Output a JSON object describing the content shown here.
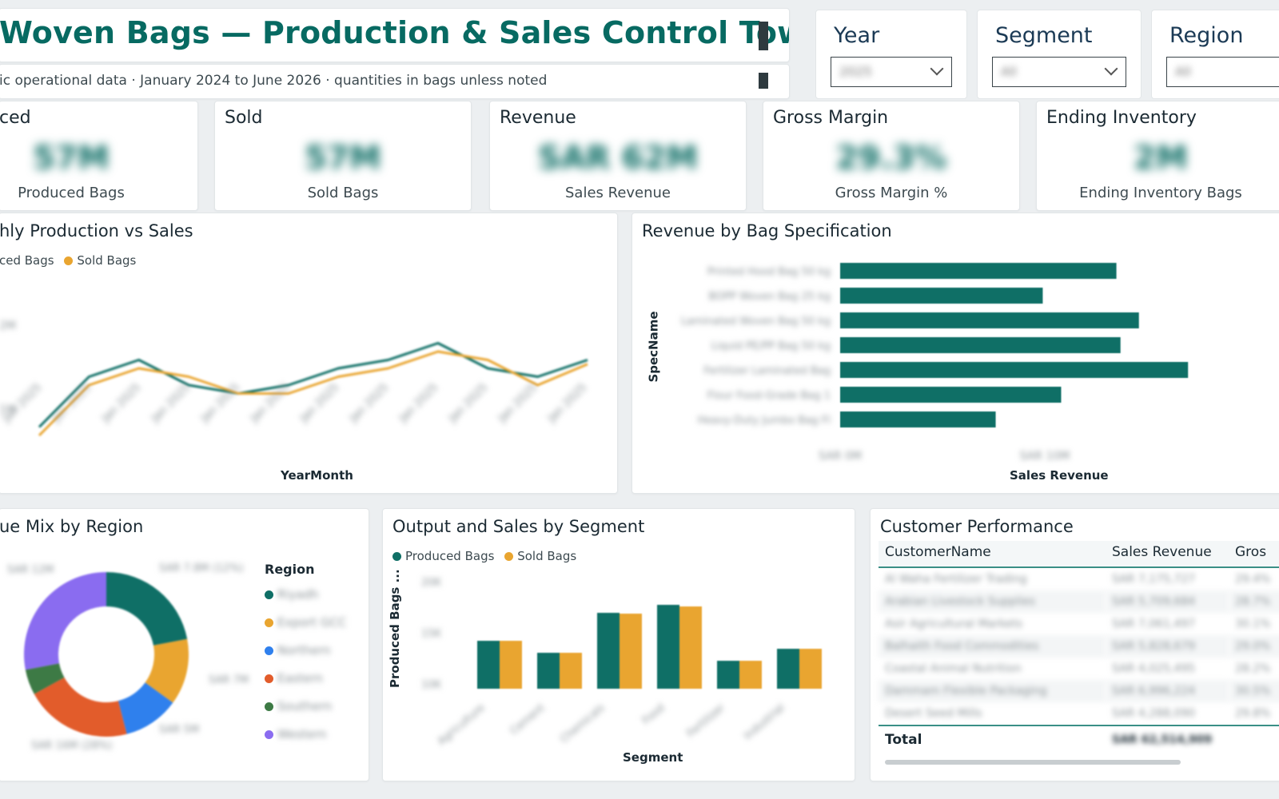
{
  "header": {
    "title": "Woven Bags — Production & Sales Control Tower",
    "subtitle": "ic operational data · January 2024 to June 2026 · quantities in bags unless noted"
  },
  "slicers": [
    {
      "label": "Year",
      "value": "2025"
    },
    {
      "label": "Segment",
      "value": "All"
    },
    {
      "label": "Region",
      "value": "All"
    }
  ],
  "kpis": [
    {
      "title": "ced",
      "value": "57M",
      "caption": "Produced Bags"
    },
    {
      "title": "Sold",
      "value": "57M",
      "caption": "Sold Bags"
    },
    {
      "title": "Revenue",
      "value": "SAR 62M",
      "caption": "Sales Revenue"
    },
    {
      "title": "Gross Margin",
      "value": "29.3%",
      "caption": "Gross Margin %"
    },
    {
      "title": "Ending Inventory",
      "value": "2M",
      "caption": "Ending Inventory Bags"
    }
  ],
  "line_panel": {
    "title": "hly Production vs Sales",
    "legend": [
      "ced Bags",
      "Sold Bags"
    ],
    "xlabel": "YearMonth",
    "colors": {
      "produced": "#0f6f66",
      "sold": "#e9a530"
    }
  },
  "bar_panel": {
    "title": "Revenue by Bag Specification",
    "ylabel": "SpecName",
    "xlabel": "Sales Revenue",
    "categories": [
      "Printed Hood Bag 50 kg",
      "BOPP Woven Bag 25 kg",
      "Laminated Woven Bag 50 kg",
      "Liquid PE/PP Bag 50 kg",
      "Fertilizer Laminated Bag",
      "Flour Food-Grade Bag 1",
      "Heavy-Duty Jumbo Bag FI"
    ],
    "xticks": [
      "SAR 0M",
      "SAR 10M"
    ]
  },
  "donut_panel": {
    "title": "ue Mix by Region",
    "legend_title": "Region",
    "regions": [
      "Riyadh",
      "Export GCC",
      "Northern",
      "Eastern",
      "Southern",
      "Western"
    ]
  },
  "seg_panel": {
    "title": "Output and Sales by Segment",
    "legend": [
      "Produced Bags",
      "Sold Bags"
    ],
    "ylabel": "Produced Bags ...",
    "xlabel": "Segment",
    "categories": [
      "Agriculture",
      "Cement",
      "Chemicals",
      "Food",
      "Fertilizer",
      "Industrial"
    ]
  },
  "cust_panel": {
    "title": "Customer Performance",
    "columns": [
      "CustomerName",
      "Sales Revenue",
      "Gros"
    ],
    "rows": [
      {
        "name": "Al Waha Fertilizer Trading",
        "revenue": "SAR 7,175,727",
        "gm": "29.4%"
      },
      {
        "name": "Arabian Livestock Supplies",
        "revenue": "SAR 5,709,684",
        "gm": "28.7%"
      },
      {
        "name": "Asir Agricultural Markets",
        "revenue": "SAR 7,061,497",
        "gm": "30.1%"
      },
      {
        "name": "Balhaith Food Commodities",
        "revenue": "SAR 5,828,679",
        "gm": "29.0%"
      },
      {
        "name": "Coastal Animal Nutrition",
        "revenue": "SAR 4,025,495",
        "gm": "28.2%"
      },
      {
        "name": "Dammam Flexible Packaging",
        "revenue": "SAR 6,996,224",
        "gm": "30.5%"
      },
      {
        "name": "Desert Seed Mills",
        "revenue": "SAR 4,288,090",
        "gm": "29.8%"
      }
    ],
    "total_label": "Total",
    "total_value": "SAR 62,514,909"
  },
  "chart_data": [
    {
      "type": "line",
      "title": "hly Production vs Sales",
      "xlabel": "YearMonth",
      "series": [
        {
          "name": "ced Bags",
          "values": [
            1.5,
            2.1,
            2.3,
            2.0,
            1.9,
            2.0,
            2.2,
            2.3,
            2.5,
            2.2,
            2.1,
            2.3
          ]
        },
        {
          "name": "Sold Bags",
          "values": [
            1.4,
            2.0,
            2.2,
            2.1,
            1.9,
            1.9,
            2.1,
            2.2,
            2.4,
            2.3,
            2.0,
            2.25
          ]
        }
      ]
    },
    {
      "type": "bar",
      "title": "Revenue by Bag Specification",
      "xlabel": "Sales Revenue",
      "ylabel": "SpecName",
      "categories": [
        "Printed Hood Bag 50 kg",
        "BOPP Woven Bag 25 kg",
        "Laminated Woven Bag 50 kg",
        "Liquid PE/PP Bag 50 kg",
        "Fertilizer Laminated Bag",
        "Flour Food-Grade Bag 1",
        "Heavy-Duty Jumbo Bag FI"
      ],
      "values": [
        13.5,
        9.9,
        14.6,
        13.7,
        17.0,
        10.8,
        7.6
      ],
      "color": "#0f6f66"
    },
    {
      "type": "pie",
      "title": "ue Mix by Region",
      "categories": [
        "Riyadh",
        "Export GCC",
        "Northern",
        "Eastern",
        "Southern",
        "Western"
      ],
      "values": [
        22,
        13,
        11,
        21,
        5,
        28
      ],
      "colors": [
        "#0f6f66",
        "#e9a530",
        "#2f80ed",
        "#e25c2b",
        "#3d7a45",
        "#8a6cf0"
      ]
    },
    {
      "type": "bar",
      "title": "Output and Sales by Segment",
      "xlabel": "Segment",
      "ylabel": "Produced Bags ...",
      "categories": [
        "Agriculture",
        "Cement",
        "Chemicals",
        "Food",
        "Fertilizer",
        "Industrial"
      ],
      "series": [
        {
          "name": "Produced Bags",
          "values": [
            6.0,
            4.5,
            9.5,
            10.5,
            3.5,
            5.0
          ]
        },
        {
          "name": "Sold Bags",
          "values": [
            6.0,
            4.5,
            9.4,
            10.3,
            3.5,
            5.0
          ]
        }
      ],
      "yticks": [
        "20K",
        "15K",
        "10K"
      ],
      "colors": [
        "#0f6f66",
        "#e9a530"
      ]
    }
  ]
}
